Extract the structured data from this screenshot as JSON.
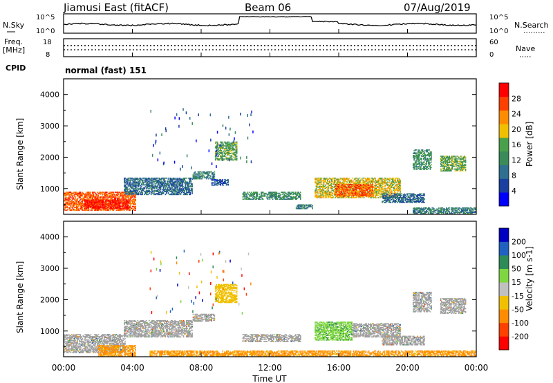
{
  "header": {
    "site": "Jiamusi East (fitACF)",
    "beam": "Beam 06",
    "date": "07/Aug/2019"
  },
  "noise_panel": {
    "left_label": "N.Sky",
    "right_label": "N.Search",
    "left_ticks": [
      "10^5",
      "10^0"
    ],
    "right_ticks": [
      "10^5",
      "10^0"
    ]
  },
  "freq_panel": {
    "left_label_1": "Freq.",
    "left_label_2": "[MHz]",
    "left_ticks": [
      "18",
      "8"
    ],
    "right_label": "Nave",
    "right_ticks": [
      "60",
      "0"
    ]
  },
  "cpid": {
    "label": "CPID",
    "value": "normal (fast) 151"
  },
  "x_axis": {
    "ticks": [
      "00:00",
      "04:00",
      "08:00",
      "12:00",
      "16:00",
      "20:00",
      "00:00"
    ],
    "label": "Time UT"
  },
  "colors": {
    "power_scale": [
      "#0000ff",
      "#1a3fa0",
      "#2f6f8f",
      "#3a8a5a",
      "#4aa04a",
      "#f0c000",
      "#ff8c00",
      "#ff4000",
      "#ff0000"
    ],
    "velocity_scale": [
      "#ff0000",
      "#ff4000",
      "#ff8c00",
      "#f0c000",
      "#c0c0c0",
      "#7fd640",
      "#2e8b57",
      "#2060c0",
      "#0000c0"
    ],
    "ground_scatter": "#a0a0a0"
  },
  "chart_data": [
    {
      "type": "heatmap",
      "title": "",
      "ylabel": "Slant Range [km]",
      "xlabel": "Time UT",
      "x_range_hours": [
        0,
        24
      ],
      "ylim": [
        180,
        4500
      ],
      "y_ticks": [
        1000,
        2000,
        3000,
        4000
      ],
      "colorbar": {
        "label": "Power [dB]",
        "ticks": [
          "4",
          "8",
          "12",
          "16",
          "20",
          "24",
          "28"
        ],
        "range": [
          0,
          30
        ]
      },
      "echo_regions": [
        {
          "t0": 0.0,
          "t1": 4.2,
          "r0": 300,
          "r1": 900,
          "level": 24
        },
        {
          "t0": 1.2,
          "t1": 3.8,
          "r0": 350,
          "r1": 650,
          "level": 28
        },
        {
          "t0": 3.5,
          "t1": 7.5,
          "r0": 800,
          "r1": 1350,
          "level": 8
        },
        {
          "t0": 7.5,
          "t1": 8.8,
          "r0": 1300,
          "r1": 1550,
          "level": 10
        },
        {
          "t0": 8.8,
          "t1": 10.1,
          "r0": 1900,
          "r1": 2500,
          "level": 14
        },
        {
          "t0": 8.6,
          "t1": 9.6,
          "r0": 1100,
          "r1": 1300,
          "level": 6
        },
        {
          "t0": 10.4,
          "t1": 13.8,
          "r0": 650,
          "r1": 900,
          "level": 12
        },
        {
          "t0": 13.5,
          "t1": 14.5,
          "r0": 350,
          "r1": 500,
          "level": 10
        },
        {
          "t0": 14.6,
          "t1": 19.6,
          "r0": 700,
          "r1": 1350,
          "level": 18
        },
        {
          "t0": 15.8,
          "t1": 18.0,
          "r0": 750,
          "r1": 1150,
          "level": 24
        },
        {
          "t0": 18.5,
          "t1": 21.0,
          "r0": 550,
          "r1": 850,
          "level": 8
        },
        {
          "t0": 20.3,
          "t1": 21.4,
          "r0": 1600,
          "r1": 2250,
          "level": 12
        },
        {
          "t0": 21.9,
          "t1": 23.4,
          "r0": 1550,
          "r1": 2050,
          "level": 14
        },
        {
          "t0": 20.3,
          "t1": 24.0,
          "r0": 200,
          "r1": 400,
          "level": 10
        }
      ]
    },
    {
      "type": "heatmap",
      "title": "",
      "ylabel": "Slant Range [km]",
      "xlabel": "Time UT",
      "x_range_hours": [
        0,
        24
      ],
      "ylim": [
        180,
        4500
      ],
      "y_ticks": [
        1000,
        2000,
        3000,
        4000
      ],
      "colorbar": {
        "label": "Velocity [m s-1]",
        "ticks": [
          "200",
          "100",
          "50",
          "15",
          "-15",
          "-50",
          "-100",
          "-200"
        ],
        "range": [
          -250,
          250
        ]
      },
      "echo_regions": [
        {
          "t0": 0.0,
          "t1": 3.6,
          "r0": 300,
          "r1": 900,
          "level": 0,
          "ground": true
        },
        {
          "t0": 2.0,
          "t1": 4.2,
          "r0": 200,
          "r1": 550,
          "level": -60
        },
        {
          "t0": 3.5,
          "t1": 7.5,
          "r0": 800,
          "r1": 1350,
          "level": 0,
          "ground": true
        },
        {
          "t0": 7.5,
          "t1": 8.8,
          "r0": 1300,
          "r1": 1550,
          "level": 0,
          "ground": true
        },
        {
          "t0": 8.8,
          "t1": 10.1,
          "r0": 1900,
          "r1": 2500,
          "level": -30
        },
        {
          "t0": 10.4,
          "t1": 13.8,
          "r0": 650,
          "r1": 900,
          "level": 0,
          "ground": true
        },
        {
          "t0": 14.6,
          "t1": 16.8,
          "r0": 700,
          "r1": 1300,
          "level": 40
        },
        {
          "t0": 16.8,
          "t1": 19.6,
          "r0": 800,
          "r1": 1250,
          "level": 0,
          "ground": true
        },
        {
          "t0": 18.5,
          "t1": 21.0,
          "r0": 550,
          "r1": 850,
          "level": 0,
          "ground": true
        },
        {
          "t0": 20.3,
          "t1": 21.4,
          "r0": 1600,
          "r1": 2250,
          "level": 0,
          "ground": true
        },
        {
          "t0": 21.9,
          "t1": 23.4,
          "r0": 1550,
          "r1": 2050,
          "level": 0,
          "ground": true
        },
        {
          "t0": 5.0,
          "t1": 24.0,
          "r0": 200,
          "r1": 380,
          "level": -60
        }
      ]
    }
  ]
}
